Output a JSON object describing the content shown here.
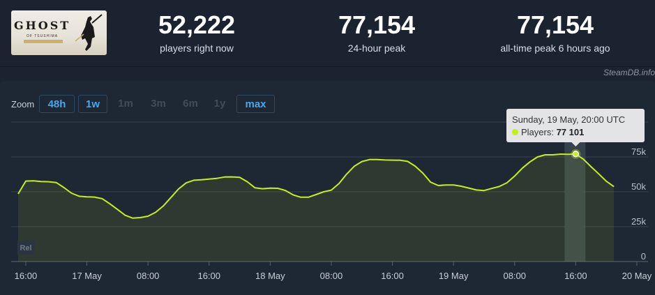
{
  "game": {
    "logo_title": "GHOST",
    "logo_subtitle": "OF TSUSHIMA"
  },
  "stats": [
    {
      "value": "52,222",
      "label": "players right now"
    },
    {
      "value": "77,154",
      "label": "24-hour peak"
    },
    {
      "value": "77,154",
      "label": "all-time peak 6 hours ago"
    }
  ],
  "credit": "SteamDB.info",
  "zoom": {
    "label": "Zoom",
    "options": [
      {
        "label": "48h",
        "active": true
      },
      {
        "label": "1w",
        "active": true
      },
      {
        "label": "1m",
        "active": false
      },
      {
        "label": "3m",
        "active": false
      },
      {
        "label": "6m",
        "active": false
      },
      {
        "label": "1y",
        "active": false
      },
      {
        "label": "max",
        "active": true
      }
    ]
  },
  "tooltip": {
    "date": "Sunday, 19 May, 20:00 UTC",
    "series_label": "Players: ",
    "value_text": "77 101"
  },
  "colors": {
    "line": "#c4f01a",
    "accent": "#46a9f0",
    "grid": "#3a4452"
  },
  "chart_data": {
    "type": "area",
    "x_unit": "hours since 16 May 16:00 UTC",
    "xlim": [
      -1,
      78
    ],
    "ylim": [
      0,
      100000
    ],
    "y_ticks": [
      0,
      25000,
      50000,
      75000
    ],
    "y_tick_labels": [
      "0",
      "25k",
      "50k",
      "75k"
    ],
    "x_ticks": [
      {
        "x": 0,
        "label": "16:00"
      },
      {
        "x": 8,
        "label": "17 May"
      },
      {
        "x": 16,
        "label": "08:00"
      },
      {
        "x": 24,
        "label": "16:00"
      },
      {
        "x": 32,
        "label": "18 May"
      },
      {
        "x": 40,
        "label": "08:00"
      },
      {
        "x": 48,
        "label": "16:00"
      },
      {
        "x": 56,
        "label": "19 May"
      },
      {
        "x": 64,
        "label": "08:00"
      },
      {
        "x": 72,
        "label": "16:00"
      },
      {
        "x": 80,
        "label": "20 May"
      }
    ],
    "series": [
      {
        "name": "Players",
        "points": [
          [
            -1,
            48500
          ],
          [
            0,
            57700
          ],
          [
            1,
            57900
          ],
          [
            2,
            57400
          ],
          [
            3,
            57200
          ],
          [
            4,
            56600
          ],
          [
            5,
            53000
          ],
          [
            6,
            49000
          ],
          [
            7,
            46800
          ],
          [
            8,
            46400
          ],
          [
            9,
            46200
          ],
          [
            10,
            45100
          ],
          [
            11,
            41400
          ],
          [
            12,
            37400
          ],
          [
            13,
            33200
          ],
          [
            14,
            31100
          ],
          [
            15,
            31500
          ],
          [
            16,
            32500
          ],
          [
            17,
            35300
          ],
          [
            18,
            39800
          ],
          [
            19,
            45900
          ],
          [
            20,
            52000
          ],
          [
            21,
            56400
          ],
          [
            22,
            58300
          ],
          [
            23,
            58600
          ],
          [
            24,
            59100
          ],
          [
            25,
            59600
          ],
          [
            26,
            60600
          ],
          [
            27,
            60700
          ],
          [
            28,
            60400
          ],
          [
            29,
            57200
          ],
          [
            30,
            52900
          ],
          [
            31,
            52200
          ],
          [
            32,
            52600
          ],
          [
            33,
            52500
          ],
          [
            34,
            50900
          ],
          [
            35,
            47800
          ],
          [
            36,
            46100
          ],
          [
            37,
            46100
          ],
          [
            38,
            48000
          ],
          [
            39,
            50000
          ],
          [
            40,
            51200
          ],
          [
            41,
            55900
          ],
          [
            42,
            62600
          ],
          [
            43,
            68300
          ],
          [
            44,
            71700
          ],
          [
            45,
            73100
          ],
          [
            46,
            73100
          ],
          [
            47,
            72800
          ],
          [
            48,
            72700
          ],
          [
            49,
            72600
          ],
          [
            50,
            71800
          ],
          [
            51,
            68300
          ],
          [
            52,
            63300
          ],
          [
            53,
            56900
          ],
          [
            54,
            54500
          ],
          [
            55,
            54900
          ],
          [
            56,
            54900
          ],
          [
            57,
            54000
          ],
          [
            58,
            52700
          ],
          [
            59,
            51300
          ],
          [
            60,
            50900
          ],
          [
            61,
            52400
          ],
          [
            62,
            53800
          ],
          [
            63,
            56500
          ],
          [
            64,
            61300
          ],
          [
            65,
            66900
          ],
          [
            66,
            71400
          ],
          [
            67,
            75000
          ],
          [
            68,
            76500
          ],
          [
            69,
            76500
          ],
          [
            70,
            77000
          ],
          [
            71,
            76900
          ],
          [
            72,
            77100
          ],
          [
            73,
            73400
          ],
          [
            74,
            68000
          ],
          [
            75,
            62900
          ],
          [
            76,
            57600
          ],
          [
            77,
            53700
          ]
        ]
      }
    ],
    "highlight": {
      "x": 72,
      "y": 77101
    },
    "legend_marker": "Rel",
    "grid": true
  }
}
